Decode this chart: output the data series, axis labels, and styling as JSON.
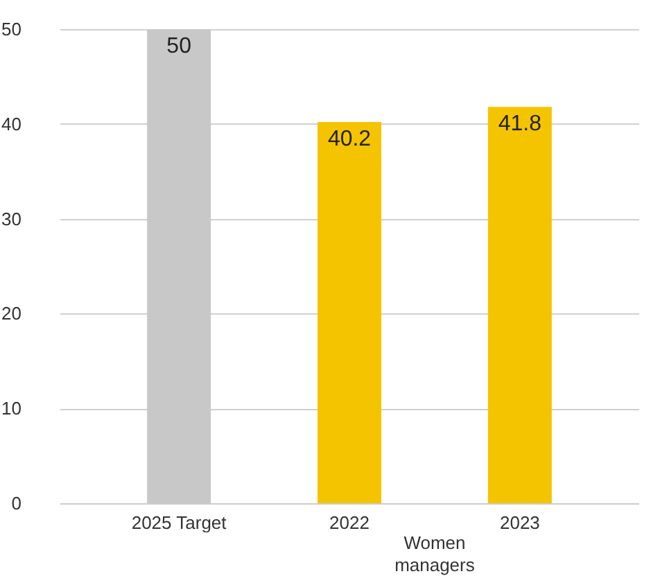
{
  "chart_data": {
    "type": "bar",
    "categories": [
      "2025 Target",
      "2022",
      "2023"
    ],
    "values": [
      50,
      40.2,
      41.8
    ],
    "colors": [
      "#c8c8c8",
      "#f5c400",
      "#f5c400"
    ],
    "ylim": [
      0,
      50
    ],
    "yticks": [
      0,
      10,
      20,
      30,
      40,
      50
    ],
    "grid": "y",
    "data_labels": true,
    "annotations": [
      "Women managers"
    ]
  }
}
